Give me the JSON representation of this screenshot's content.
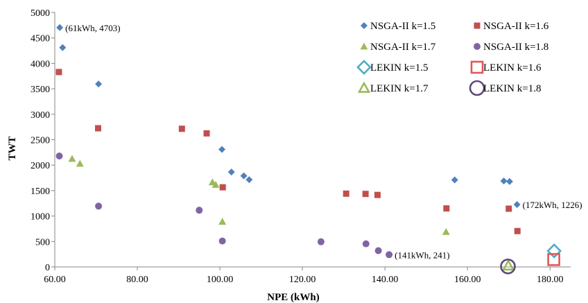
{
  "chart_data": {
    "type": "scatter",
    "xlabel": "NPE (kWh)",
    "ylabel": "TWT",
    "xlim": [
      60,
      185
    ],
    "ylim": [
      0,
      5000
    ],
    "x_ticks": [
      "60.00",
      "80.00",
      "100.00",
      "120.00",
      "140.00",
      "160.00",
      "180.00"
    ],
    "y_ticks": [
      "0",
      "500",
      "1000",
      "1500",
      "2000",
      "2500",
      "3000",
      "3500",
      "4000",
      "4500",
      "5000"
    ],
    "grid": false,
    "legend_position": "top-right",
    "series": [
      {
        "name": "NSGA-II k=1.5",
        "marker": "diamond-filled",
        "color": "#4f81bd",
        "points": [
          [
            61.2,
            4703
          ],
          [
            61.9,
            4310
          ],
          [
            70.6,
            3595
          ],
          [
            100.5,
            2310
          ],
          [
            102.8,
            1865
          ],
          [
            105.8,
            1790
          ],
          [
            107.1,
            1715
          ],
          [
            156.9,
            1710
          ],
          [
            168.8,
            1690
          ],
          [
            170.2,
            1680
          ],
          [
            172.0,
            1226
          ]
        ]
      },
      {
        "name": "NSGA-II k=1.6",
        "marker": "square-filled",
        "color": "#c0504d",
        "points": [
          [
            61.0,
            3830
          ],
          [
            70.5,
            2725
          ],
          [
            90.8,
            2715
          ],
          [
            96.8,
            2625
          ],
          [
            100.7,
            1565
          ],
          [
            130.6,
            1440
          ],
          [
            135.3,
            1435
          ],
          [
            138.2,
            1415
          ],
          [
            154.9,
            1150
          ],
          [
            170.0,
            1145
          ],
          [
            172.1,
            705
          ]
        ]
      },
      {
        "name": "NSGA-II k=1.7",
        "marker": "triangle-filled",
        "color": "#9bbb59",
        "points": [
          [
            64.2,
            2125
          ],
          [
            66.1,
            2030
          ],
          [
            98.2,
            1665
          ],
          [
            99.0,
            1615
          ],
          [
            100.6,
            890
          ],
          [
            154.8,
            690
          ]
        ]
      },
      {
        "name": "NSGA-II k=1.8",
        "marker": "circle-filled",
        "color": "#8064a2",
        "points": [
          [
            61.1,
            2180
          ],
          [
            70.6,
            1195
          ],
          [
            95.0,
            1115
          ],
          [
            100.6,
            510
          ],
          [
            124.5,
            495
          ],
          [
            135.4,
            455
          ],
          [
            138.4,
            320
          ],
          [
            141.0,
            241
          ]
        ]
      },
      {
        "name": "LEKIN k=1.5",
        "marker": "diamond-open",
        "color": "#4bacc6",
        "points": [
          [
            181.0,
            315
          ]
        ]
      },
      {
        "name": "LEKIN k=1.6",
        "marker": "square-open",
        "color": "#e15759",
        "points": [
          [
            180.9,
            145
          ]
        ]
      },
      {
        "name": "LEKIN k=1.7",
        "marker": "triangle-open",
        "color": "#9bbb59",
        "points": [
          [
            169.9,
            25
          ]
        ]
      },
      {
        "name": "LEKIN k=1.8",
        "marker": "circle-open",
        "color": "#5f497a",
        "points": [
          [
            169.8,
            10
          ]
        ]
      }
    ],
    "annotations": [
      {
        "text": "(61kWh, 4703)",
        "x": 61.2,
        "y": 4703
      },
      {
        "text": "(141kWh, 241)",
        "x": 141.0,
        "y": 241
      },
      {
        "text": "(172kWh, 1226)",
        "x": 172.0,
        "y": 1226
      }
    ]
  }
}
